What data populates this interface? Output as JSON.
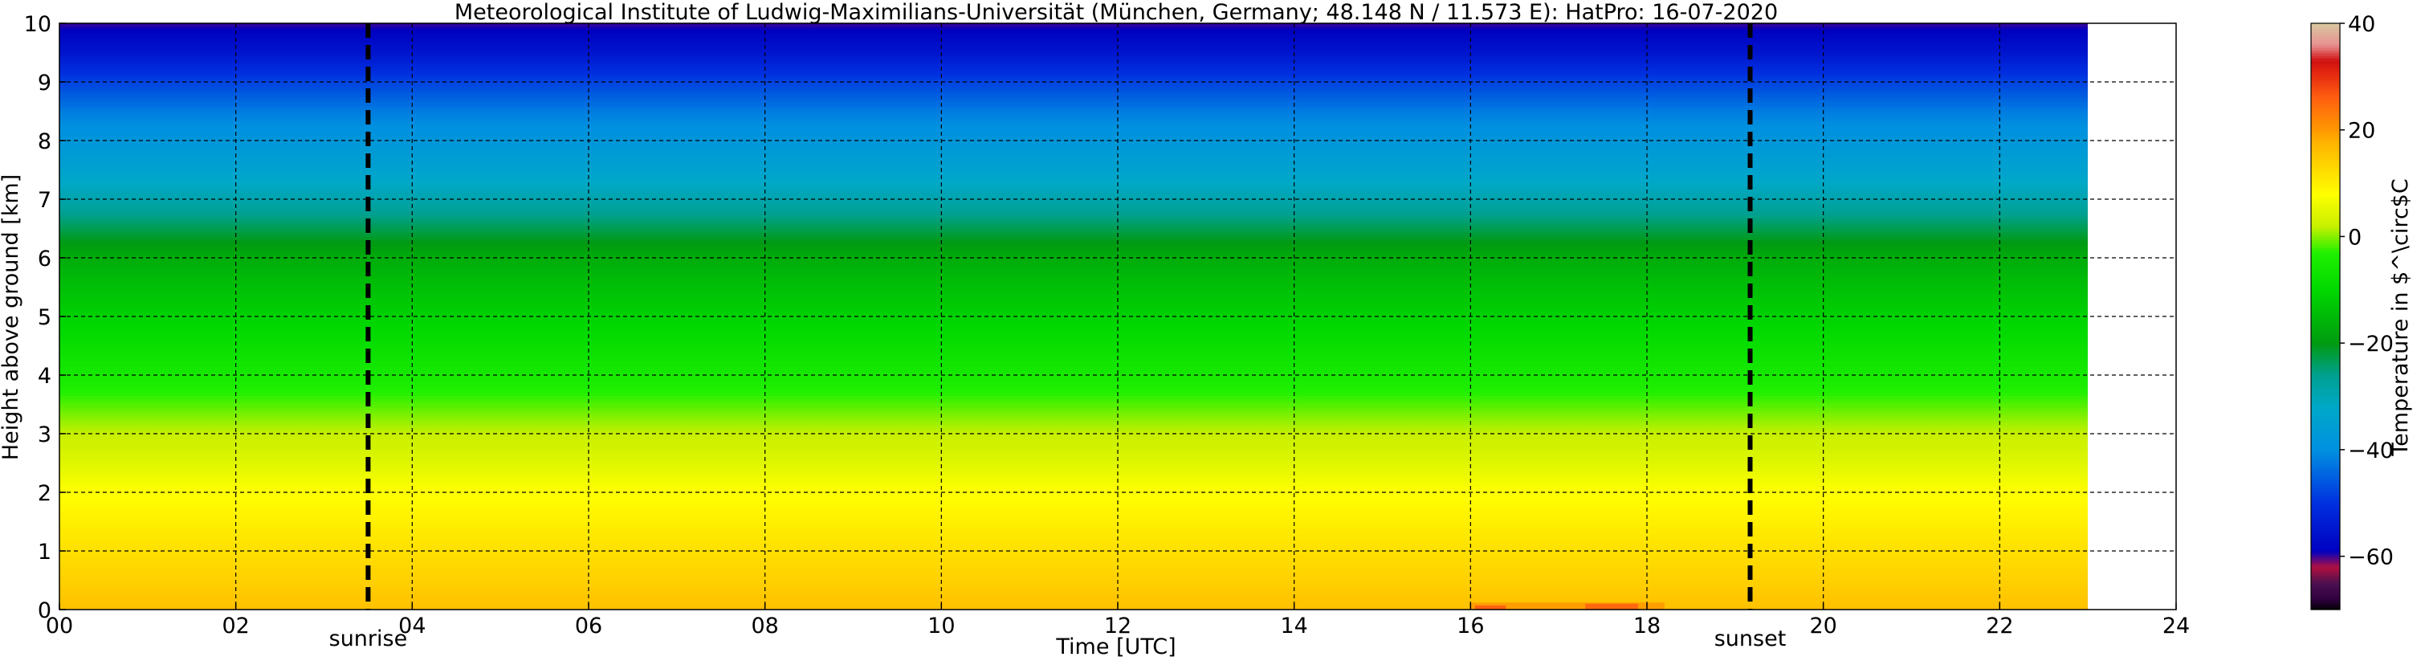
{
  "chart_data": {
    "type": "heatmap",
    "title": "Meteorological Institute of Ludwig-Maximilians-Universität (München, Germany; 48.148 N / 11.573 E):    HatPro: 16-07-2020",
    "xlabel": "Time [UTC]",
    "ylabel": "Height above ground [km]",
    "xlim": [
      0,
      24
    ],
    "ylim": [
      0,
      10
    ],
    "data_extent_x": [
      0,
      23
    ],
    "xticks": [
      0,
      2,
      4,
      6,
      8,
      10,
      12,
      14,
      16,
      18,
      20,
      22,
      24
    ],
    "xtick_labels": [
      "00",
      "02",
      "04",
      "06",
      "08",
      "10",
      "12",
      "14",
      "16",
      "18",
      "20",
      "22",
      "24"
    ],
    "yticks": [
      0,
      1,
      2,
      3,
      4,
      5,
      6,
      7,
      8,
      9,
      10
    ],
    "ytick_labels": [
      "0",
      "1",
      "2",
      "3",
      "4",
      "5",
      "6",
      "7",
      "8",
      "9",
      "10"
    ],
    "grid": true,
    "event_lines": [
      {
        "label": "sunrise",
        "x": 3.5
      },
      {
        "label": "sunset",
        "x": 19.17
      }
    ],
    "colorbar": {
      "label": "Temperature in $^\\circ$C",
      "range": [
        -70,
        40
      ],
      "ticks": [
        40,
        20,
        0,
        -20,
        -40,
        -60
      ],
      "tick_labels": [
        "40",
        "20",
        "0",
        "−20",
        "−40",
        "−60"
      ]
    },
    "temperature_profile": {
      "heights_km": [
        0,
        0.5,
        1,
        2,
        2.5,
        3,
        4,
        5,
        6,
        6.5,
        7,
        7.5,
        8,
        8.5,
        9,
        9.5,
        10
      ],
      "temps_c": [
        16,
        14,
        12,
        8,
        4.5,
        2,
        -5,
        -11,
        -17,
        -23,
        -29,
        -34,
        -38,
        -42,
        -48,
        -55,
        -60
      ]
    },
    "surface_warm_anomaly": {
      "x_start": 16.0,
      "x_end": 18.2,
      "peak_temp_c": 24
    }
  },
  "colormap": {
    "stops": [
      {
        "t": -70,
        "color": "#000000"
      },
      {
        "t": -68,
        "color": "#300040"
      },
      {
        "t": -65,
        "color": "#4a1050"
      },
      {
        "t": -62,
        "color": "#b01040"
      },
      {
        "t": -59,
        "color": "#0000c0"
      },
      {
        "t": -50,
        "color": "#0030e0"
      },
      {
        "t": -40,
        "color": "#0090e0"
      },
      {
        "t": -32,
        "color": "#00a8c8"
      },
      {
        "t": -26,
        "color": "#00a090"
      },
      {
        "t": -20,
        "color": "#009a10"
      },
      {
        "t": -10,
        "color": "#00d800"
      },
      {
        "t": -3,
        "color": "#20f000"
      },
      {
        "t": 2,
        "color": "#c8f000"
      },
      {
        "t": 8,
        "color": "#ffff00"
      },
      {
        "t": 14,
        "color": "#ffd000"
      },
      {
        "t": 18,
        "color": "#ffb000"
      },
      {
        "t": 20,
        "color": "#ff9800"
      },
      {
        "t": 26,
        "color": "#ff6010"
      },
      {
        "t": 30,
        "color": "#e83010"
      },
      {
        "t": 33,
        "color": "#d01010"
      },
      {
        "t": 36,
        "color": "#e89090"
      },
      {
        "t": 40,
        "color": "#d8c8a0"
      }
    ]
  }
}
